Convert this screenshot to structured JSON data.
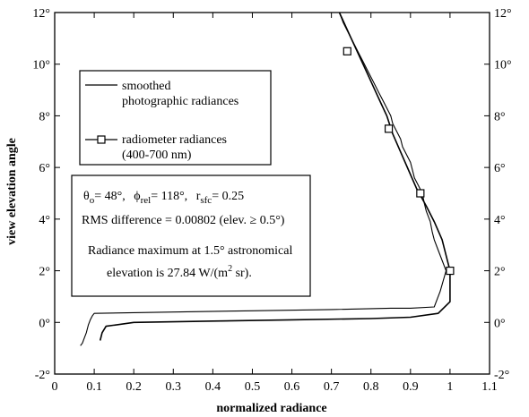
{
  "chart_data": {
    "type": "line",
    "xlabel": "normalized radiance",
    "ylabel": "view elevation angle",
    "xlim": [
      0,
      1.1
    ],
    "ylim": [
      -2,
      12
    ],
    "x_ticks": [
      "0",
      "0.1",
      "0.2",
      "0.3",
      "0.4",
      "0.5",
      "0.6",
      "0.7",
      "0.8",
      "0.9",
      "1",
      "1.1"
    ],
    "y_ticks_left": [
      "-2°",
      "0°",
      "2°",
      "4°",
      "6°",
      "8°",
      "10°",
      "12°"
    ],
    "y_ticks_right": [
      "-2°",
      "0°",
      "2°",
      "4°",
      "6°",
      "8°",
      "10°",
      "12°"
    ],
    "grid": false,
    "legend_position": "upper-left",
    "series": [
      {
        "name": "smoothed photographic radiances",
        "marker": "none",
        "x": [
          0.065,
          0.07,
          0.075,
          0.08,
          0.085,
          0.09,
          0.095,
          0.1,
          0.3,
          0.5,
          0.7,
          0.85,
          0.9,
          0.96,
          0.965,
          0.975,
          0.99,
          0.98,
          0.97,
          0.96,
          0.955,
          0.95,
          0.94,
          0.935,
          0.93,
          0.92,
          0.91,
          0.905,
          0.9,
          0.89,
          0.88,
          0.875,
          0.865,
          0.855,
          0.85,
          0.84,
          0.83,
          0.82,
          0.81,
          0.8,
          0.79,
          0.78,
          0.77,
          0.76,
          0.75,
          0.74,
          0.73,
          0.72
        ],
        "y": [
          -0.9,
          -0.8,
          -0.6,
          -0.4,
          -0.1,
          0.1,
          0.25,
          0.35,
          0.4,
          0.45,
          0.5,
          0.55,
          0.55,
          0.6,
          0.8,
          1.2,
          2.0,
          2.4,
          2.8,
          3.2,
          3.5,
          3.9,
          4.3,
          4.6,
          5.0,
          5.3,
          5.6,
          5.9,
          6.2,
          6.5,
          6.8,
          7.1,
          7.4,
          7.7,
          8.0,
          8.3,
          8.6,
          8.9,
          9.2,
          9.5,
          9.8,
          10.1,
          10.4,
          10.7,
          11.0,
          11.3,
          11.6,
          12.0
        ]
      },
      {
        "name": "radiometer radiances (400-700 nm)",
        "marker": "square",
        "marker_every": 20,
        "x": [
          0.115,
          0.12,
          0.13,
          0.2,
          0.4,
          0.6,
          0.8,
          0.9,
          0.97,
          1.0,
          1.0,
          0.99,
          0.98,
          0.96,
          0.94,
          0.915,
          0.895,
          0.875,
          0.855,
          0.84,
          0.825,
          0.81,
          0.795,
          0.78,
          0.765,
          0.75,
          0.735,
          0.72
        ],
        "y": [
          -0.7,
          -0.4,
          -0.15,
          0.0,
          0.05,
          0.1,
          0.15,
          0.2,
          0.35,
          0.8,
          2.0,
          2.6,
          3.2,
          3.9,
          4.5,
          5.2,
          5.9,
          6.6,
          7.3,
          8.0,
          8.5,
          9.0,
          9.5,
          10.0,
          10.5,
          11.0,
          11.5,
          12.0
        ],
        "marker_points": [
          [
            1.0,
            2.0
          ],
          [
            0.925,
            5.0
          ],
          [
            0.845,
            7.5
          ],
          [
            0.74,
            10.5
          ]
        ]
      }
    ],
    "legend": [
      "smoothed",
      "photographic radiances",
      "radiometer radiances",
      "(400-700 nm)"
    ],
    "annotation": {
      "line1": {
        "theta_sym": "θ",
        "theta_sub": "o",
        "theta_val": "= 48°,",
        "phi_sym": "ϕ",
        "phi_sub": "rel",
        "phi_val": "= 118°,",
        "r_sym": "r",
        "r_sub": "sfc",
        "r_val": "= 0.25"
      },
      "line2": "RMS difference = 0.00802 (elev. ≥ 0.5°)",
      "line3": "Radiance maximum at 1.5° astronomical",
      "line4_pre": "elevation is 27.84 W/(m",
      "line4_sup": "2",
      "line4_post": " sr)."
    }
  }
}
